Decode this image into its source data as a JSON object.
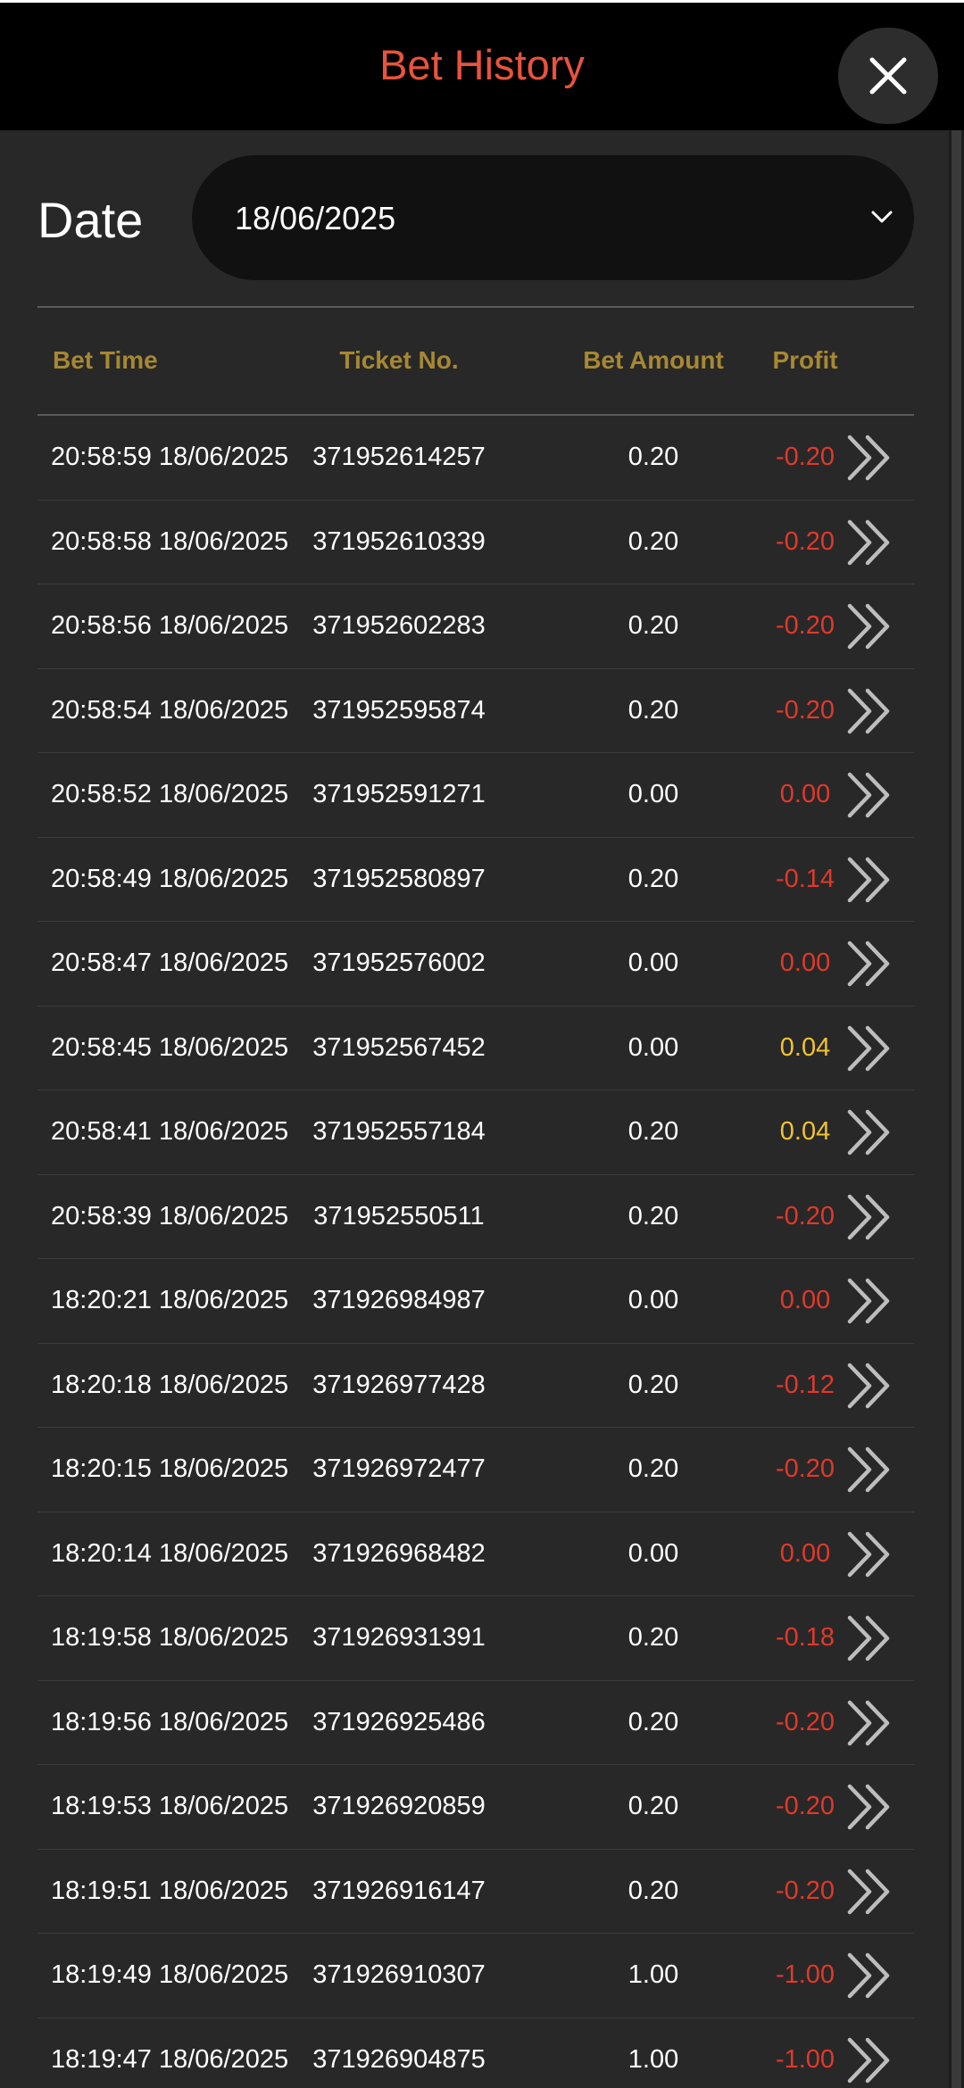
{
  "header": {
    "title": "Bet History"
  },
  "filter": {
    "date_label": "Date",
    "date_value": "18/06/2025"
  },
  "table": {
    "columns": [
      "Bet Time",
      "Ticket No.",
      "Bet Amount",
      "Profit"
    ],
    "rows": [
      {
        "time": "20:58:59 18/06/2025",
        "ticket": "371952614257",
        "amount": "0.20",
        "profit": "-0.20",
        "profit_color": "#e0392b"
      },
      {
        "time": "20:58:58 18/06/2025",
        "ticket": "371952610339",
        "amount": "0.20",
        "profit": "-0.20",
        "profit_color": "#e0392b"
      },
      {
        "time": "20:58:56 18/06/2025",
        "ticket": "371952602283",
        "amount": "0.20",
        "profit": "-0.20",
        "profit_color": "#e0392b"
      },
      {
        "time": "20:58:54 18/06/2025",
        "ticket": "371952595874",
        "amount": "0.20",
        "profit": "-0.20",
        "profit_color": "#e0392b"
      },
      {
        "time": "20:58:52 18/06/2025",
        "ticket": "371952591271",
        "amount": "0.00",
        "profit": "0.00",
        "profit_color": "#e0392b"
      },
      {
        "time": "20:58:49 18/06/2025",
        "ticket": "371952580897",
        "amount": "0.20",
        "profit": "-0.14",
        "profit_color": "#e0392b"
      },
      {
        "time": "20:58:47 18/06/2025",
        "ticket": "371952576002",
        "amount": "0.00",
        "profit": "0.00",
        "profit_color": "#e0392b"
      },
      {
        "time": "20:58:45 18/06/2025",
        "ticket": "371952567452",
        "amount": "0.00",
        "profit": "0.04",
        "profit_color": "#f2c230"
      },
      {
        "time": "20:58:41 18/06/2025",
        "ticket": "371952557184",
        "amount": "0.20",
        "profit": "0.04",
        "profit_color": "#f2c230"
      },
      {
        "time": "20:58:39 18/06/2025",
        "ticket": "371952550511",
        "amount": "0.20",
        "profit": "-0.20",
        "profit_color": "#e0392b"
      },
      {
        "time": "18:20:21 18/06/2025",
        "ticket": "371926984987",
        "amount": "0.00",
        "profit": "0.00",
        "profit_color": "#e0392b"
      },
      {
        "time": "18:20:18 18/06/2025",
        "ticket": "371926977428",
        "amount": "0.20",
        "profit": "-0.12",
        "profit_color": "#e0392b"
      },
      {
        "time": "18:20:15 18/06/2025",
        "ticket": "371926972477",
        "amount": "0.20",
        "profit": "-0.20",
        "profit_color": "#e0392b"
      },
      {
        "time": "18:20:14 18/06/2025",
        "ticket": "371926968482",
        "amount": "0.00",
        "profit": "0.00",
        "profit_color": "#e0392b"
      },
      {
        "time": "18:19:58 18/06/2025",
        "ticket": "371926931391",
        "amount": "0.20",
        "profit": "-0.18",
        "profit_color": "#e0392b"
      },
      {
        "time": "18:19:56 18/06/2025",
        "ticket": "371926925486",
        "amount": "0.20",
        "profit": "-0.20",
        "profit_color": "#e0392b"
      },
      {
        "time": "18:19:53 18/06/2025",
        "ticket": "371926920859",
        "amount": "0.20",
        "profit": "-0.20",
        "profit_color": "#e0392b"
      },
      {
        "time": "18:19:51 18/06/2025",
        "ticket": "371926916147",
        "amount": "0.20",
        "profit": "-0.20",
        "profit_color": "#e0392b"
      },
      {
        "time": "18:19:49 18/06/2025",
        "ticket": "371926910307",
        "amount": "1.00",
        "profit": "-1.00",
        "profit_color": "#e0392b"
      },
      {
        "time": "18:19:47 18/06/2025",
        "ticket": "371926904875",
        "amount": "1.00",
        "profit": "-1.00",
        "profit_color": "#e0392b"
      }
    ]
  },
  "icons": {
    "close": "close-icon",
    "dropdown": "chevron-down-icon",
    "detail": "double-chevron-right-icon"
  },
  "colors": {
    "title": "#e8533d",
    "header_text": "#a78832",
    "loss": "#e0392b",
    "win": "#f2c230"
  }
}
